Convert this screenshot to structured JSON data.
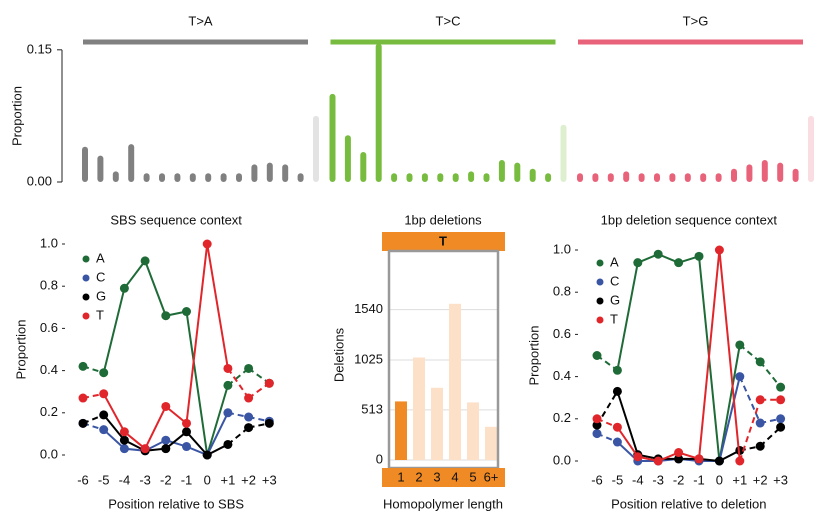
{
  "chart_data": [
    {
      "type": "grouped_bar",
      "ylabel": "Proportion",
      "ylim": [
        0,
        0.16
      ],
      "yticks": [
        {
          "value": 0,
          "label": "0.00"
        },
        {
          "value": 0.15,
          "label": "0.15"
        }
      ],
      "groups": [
        {
          "name": "T>A",
          "color": "#808080",
          "last_color": "#e3e3e3",
          "values": [
            0.04,
            0.03,
            0.012,
            0.043,
            0.01,
            0.01,
            0.01,
            0.01,
            0.01,
            0.01,
            0.01,
            0.02,
            0.022,
            0.02,
            0.01,
            0.075
          ]
        },
        {
          "name": "T>C",
          "color": "#77bb3f",
          "last_color": "#deefd0",
          "values": [
            0.1,
            0.053,
            0.034,
            0.157,
            0.01,
            0.01,
            0.01,
            0.01,
            0.01,
            0.012,
            0.01,
            0.025,
            0.022,
            0.015,
            0.01,
            0.065
          ]
        },
        {
          "name": "T>G",
          "color": "#e8637a",
          "last_color": "#f9dde2",
          "values": [
            0.01,
            0.01,
            0.01,
            0.012,
            0.01,
            0.01,
            0.01,
            0.01,
            0.01,
            0.01,
            0.015,
            0.02,
            0.025,
            0.022,
            0.015,
            0.075
          ]
        }
      ]
    },
    {
      "type": "line",
      "title": "SBS sequence context",
      "xlabel": "Position relative to SBS",
      "ylabel": "Proportion",
      "categories": [
        "-6",
        "-5",
        "-4",
        "-3",
        "-2",
        "-1",
        "0",
        "+1",
        "+2",
        "+3"
      ],
      "ylim": [
        0,
        1
      ],
      "yticks": [
        {
          "value": 0,
          "label": "0.0"
        },
        {
          "value": 0.2,
          "label": "0.2"
        },
        {
          "value": 0.4,
          "label": "0.4"
        },
        {
          "value": 0.6,
          "label": "0.6"
        },
        {
          "value": 0.8,
          "label": "0.8"
        },
        {
          "value": 1,
          "label": "1.0"
        }
      ],
      "legend": "top-left",
      "series": [
        {
          "name": "A",
          "color": "#1e6b37",
          "values": [
            0.42,
            0.39,
            0.79,
            0.92,
            0.66,
            0.68,
            0.0,
            0.33,
            0.41,
            0.34
          ]
        },
        {
          "name": "C",
          "color": "#3a55a4",
          "values": [
            0.15,
            0.12,
            0.03,
            0.02,
            0.07,
            0.04,
            0.0,
            0.2,
            0.18,
            0.16
          ]
        },
        {
          "name": "G",
          "color": "#000000",
          "values": [
            0.15,
            0.19,
            0.07,
            0.02,
            0.03,
            0.11,
            0.0,
            0.05,
            0.13,
            0.15
          ]
        },
        {
          "name": "T",
          "color": "#e0262b",
          "values": [
            0.27,
            0.29,
            0.11,
            0.03,
            0.23,
            0.15,
            1.0,
            0.41,
            0.27,
            0.34
          ]
        }
      ]
    },
    {
      "type": "bar",
      "title": "1bp deletions",
      "header": "T",
      "header_color": "#f08a24",
      "xlabel": "Homopolymer length",
      "ylabel": "Deletions",
      "categories": [
        "1",
        "2",
        "3",
        "4",
        "5",
        "6+"
      ],
      "values": [
        600,
        1050,
        740,
        1600,
        590,
        340
      ],
      "colors": [
        "#f08a24",
        "#fde0c8",
        "#fde0c8",
        "#fde0c8",
        "#fde0c8",
        "#fde0c8"
      ],
      "ylim": [
        0,
        2100
      ],
      "yticks": [
        0,
        513,
        1025,
        1540
      ],
      "grid": true
    },
    {
      "type": "line",
      "title": "1bp deletion sequence context",
      "xlabel": "Position relative to deletion",
      "ylabel": "Proportion",
      "categories": [
        "-6",
        "-5",
        "-4",
        "-3",
        "-2",
        "-1",
        "0",
        "+1",
        "+2",
        "+3"
      ],
      "ylim": [
        0,
        1
      ],
      "yticks": [
        {
          "value": 0,
          "label": "0.0"
        },
        {
          "value": 0.2,
          "label": "0.2"
        },
        {
          "value": 0.4,
          "label": "0.4"
        },
        {
          "value": 0.6,
          "label": "0.6"
        },
        {
          "value": 0.8,
          "label": "0.8"
        },
        {
          "value": 1,
          "label": "1.0"
        }
      ],
      "legend": "top-left",
      "series": [
        {
          "name": "A",
          "color": "#1e6b37",
          "values": [
            0.5,
            0.43,
            0.94,
            0.98,
            0.94,
            0.97,
            0.0,
            0.55,
            0.47,
            0.35
          ]
        },
        {
          "name": "C",
          "color": "#3a55a4",
          "values": [
            0.13,
            0.09,
            0.0,
            0.0,
            0.01,
            0.0,
            0.0,
            0.4,
            0.18,
            0.2
          ]
        },
        {
          "name": "G",
          "color": "#000000",
          "values": [
            0.17,
            0.33,
            0.03,
            0.01,
            0.01,
            0.01,
            0.0,
            0.05,
            0.07,
            0.16
          ]
        },
        {
          "name": "T",
          "color": "#e0262b",
          "values": [
            0.2,
            0.16,
            0.02,
            0.0,
            0.04,
            0.01,
            1.0,
            0.0,
            0.29,
            0.29
          ]
        }
      ]
    }
  ]
}
